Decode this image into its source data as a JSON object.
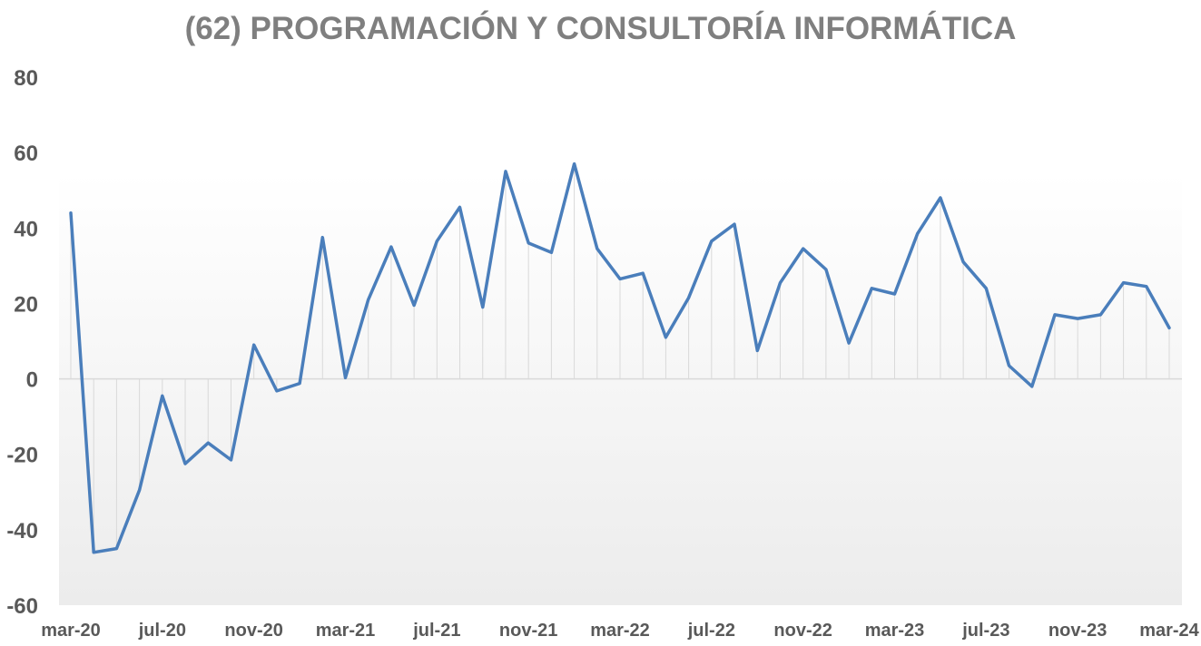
{
  "chart_data": {
    "type": "line",
    "title": "(62) PROGRAMACIÓN Y CONSULTORÍA INFORMÁTICA",
    "xlabel": "",
    "ylabel": "",
    "ylim": [
      -60,
      80
    ],
    "yticks": [
      -60,
      -40,
      -20,
      0,
      20,
      40,
      60,
      80
    ],
    "xtick_labels": [
      "mar-20",
      "jul-20",
      "nov-20",
      "mar-21",
      "jul-21",
      "nov-21",
      "mar-22",
      "jul-22",
      "nov-22",
      "mar-23",
      "jul-23",
      "nov-23",
      "mar-24"
    ],
    "x": [
      "mar-20",
      "abr-20",
      "may-20",
      "jun-20",
      "jul-20",
      "ago-20",
      "sep-20",
      "oct-20",
      "nov-20",
      "dic-20",
      "ene-21",
      "feb-21",
      "mar-21",
      "abr-21",
      "may-21",
      "jun-21",
      "jul-21",
      "ago-21",
      "sep-21",
      "oct-21",
      "nov-21",
      "dic-21",
      "ene-22",
      "feb-22",
      "mar-22",
      "abr-22",
      "may-22",
      "jun-22",
      "jul-22",
      "ago-22",
      "sep-22",
      "oct-22",
      "nov-22",
      "dic-22",
      "ene-23",
      "feb-23",
      "mar-23",
      "abr-23",
      "may-23",
      "jun-23",
      "jul-23",
      "ago-23",
      "sep-23",
      "oct-23",
      "nov-23",
      "dic-23",
      "ene-24",
      "feb-24",
      "mar-24"
    ],
    "values": [
      44,
      -46,
      -45,
      -29.5,
      -4.5,
      -22.5,
      -17,
      -21.5,
      9,
      -3.2,
      -1.2,
      37.5,
      0.3,
      21,
      35,
      19.5,
      36.5,
      45.5,
      19,
      55,
      36,
      33.5,
      57,
      34.5,
      26.5,
      28,
      11,
      21.5,
      36.5,
      41,
      7.5,
      25.5,
      34.5,
      29,
      9.5,
      24,
      22.5,
      38.5,
      48,
      31,
      24,
      3.5,
      -2,
      17,
      16,
      17,
      25.5,
      24.5,
      13.5
    ],
    "grid": false,
    "drop_lines": true,
    "line_color": "#4a7ebb",
    "drop_line_color": "#d9d9d9",
    "axis_color": "#d9d9d9",
    "label_color": "#595959",
    "title_color": "#7f7f7f"
  }
}
